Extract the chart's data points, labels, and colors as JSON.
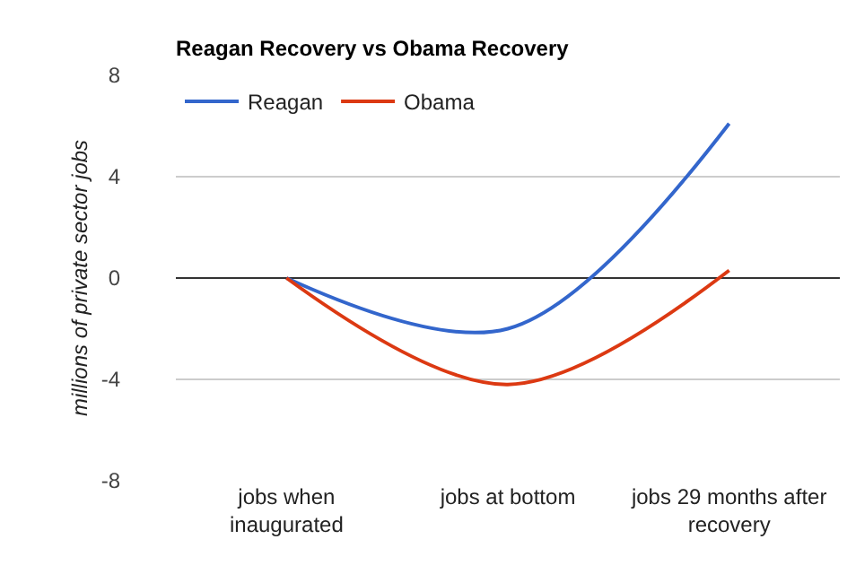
{
  "chart_data": {
    "type": "line",
    "title": "Reagan Recovery vs Obama Recovery",
    "ylabel": "millions of private sector jobs",
    "categories": [
      "jobs when inaugurated",
      "jobs at bottom",
      "jobs 29 months after recovery"
    ],
    "series": [
      {
        "name": "Reagan",
        "color": "#3366cc",
        "values": [
          0,
          -2.0,
          6.1
        ]
      },
      {
        "name": "Obama",
        "color": "#dc3912",
        "values": [
          0,
          -4.2,
          0.3
        ]
      }
    ],
    "ylim": [
      -8,
      8
    ],
    "yticks": [
      -8,
      -4,
      0,
      4,
      8
    ],
    "grid": "y",
    "legend": "top left",
    "marker": "none",
    "line_style": "solid"
  }
}
